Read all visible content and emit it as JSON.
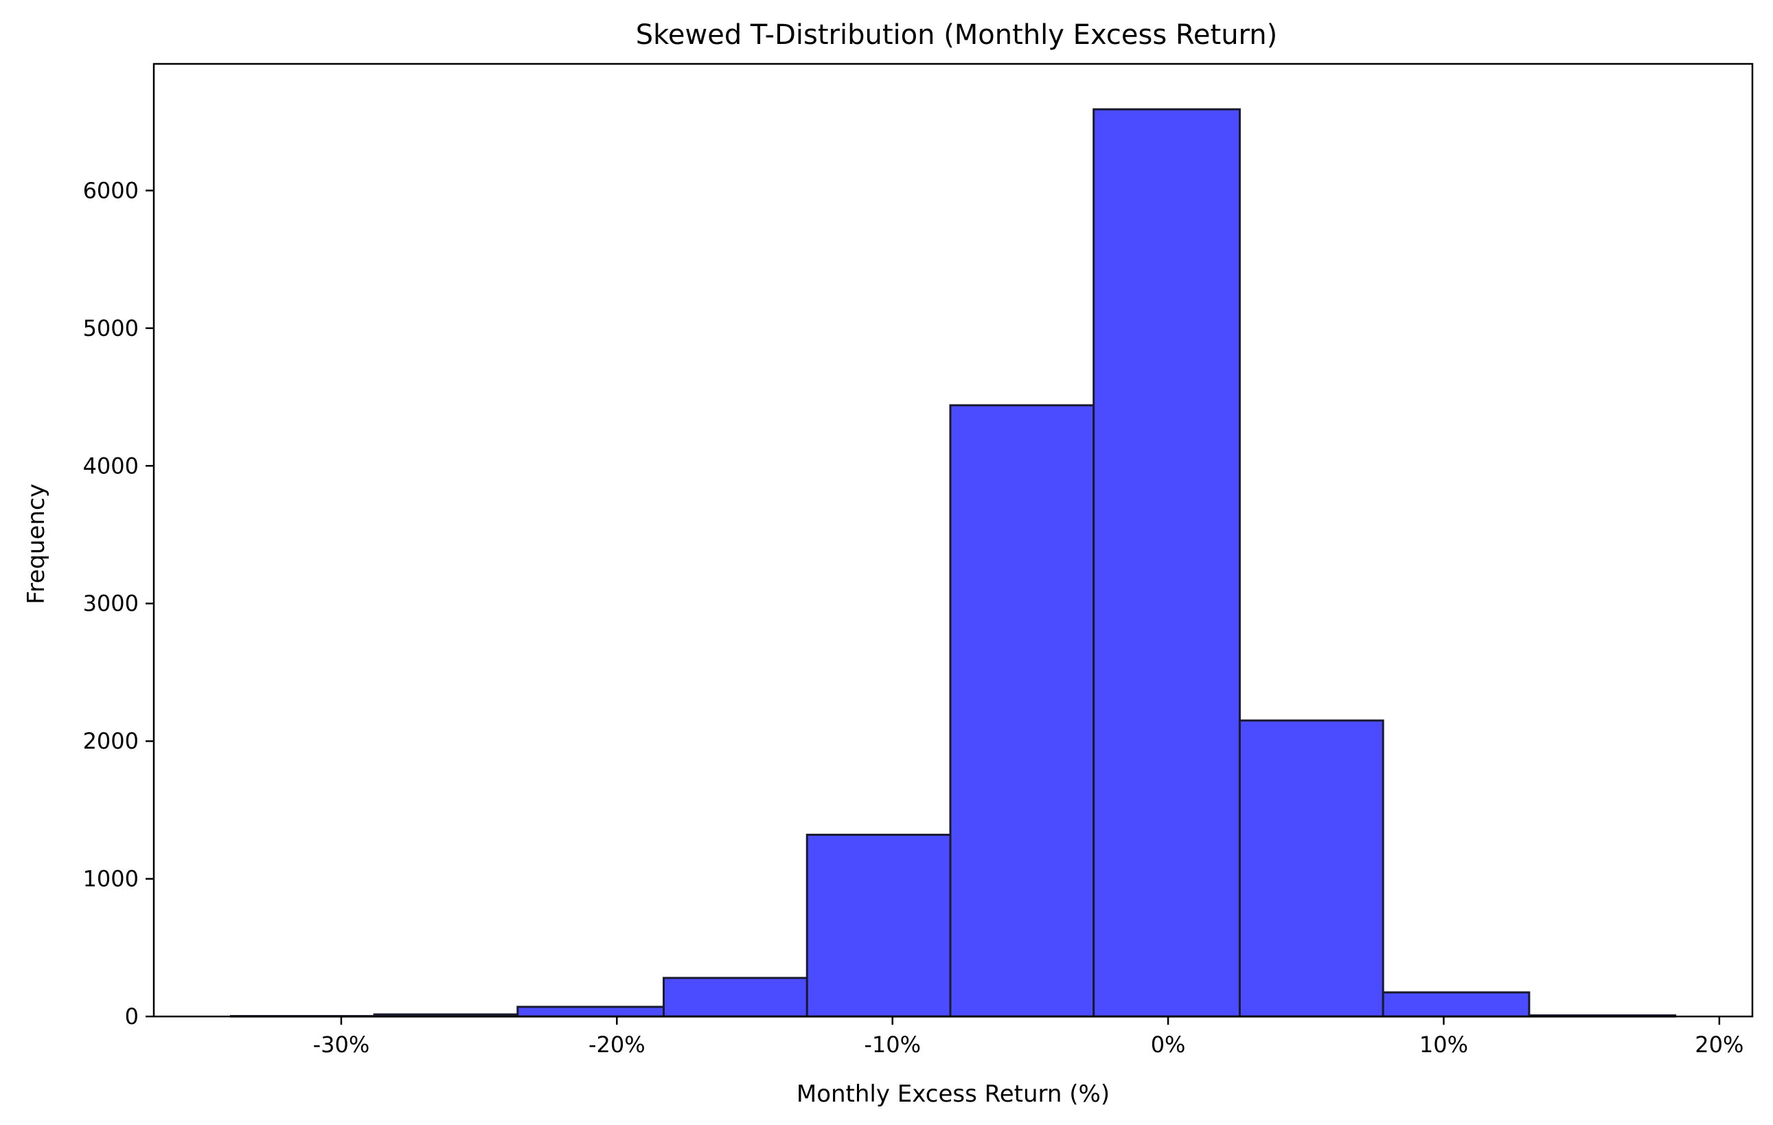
{
  "chart_data": {
    "type": "bar",
    "title": "Skewed T-Distribution (Monthly Excess Return)",
    "xlabel": "Monthly Excess Return (%)",
    "ylabel": "Frequency",
    "bar_color": "#4b4bff",
    "edge_color": "#1a1a2e",
    "bin_edges": [
      -0.34,
      -0.288,
      -0.236,
      -0.183,
      -0.131,
      -0.079,
      -0.027,
      0.026,
      0.078,
      0.131,
      0.184
    ],
    "values": [
      3,
      15,
      70,
      280,
      1320,
      4440,
      6590,
      2150,
      175,
      8
    ],
    "xlim": [
      -0.368,
      0.212
    ],
    "ylim": [
      0,
      6920
    ],
    "x_ticks": [
      {
        "value": -0.3,
        "label": "-30%"
      },
      {
        "value": -0.2,
        "label": "-20%"
      },
      {
        "value": -0.1,
        "label": "-10%"
      },
      {
        "value": 0.0,
        "label": "0%"
      },
      {
        "value": 0.1,
        "label": "10%"
      },
      {
        "value": 0.2,
        "label": "20%"
      }
    ],
    "y_ticks": [
      {
        "value": 0,
        "label": "0"
      },
      {
        "value": 1000,
        "label": "1000"
      },
      {
        "value": 2000,
        "label": "2000"
      },
      {
        "value": 3000,
        "label": "3000"
      },
      {
        "value": 4000,
        "label": "4000"
      },
      {
        "value": 5000,
        "label": "5000"
      },
      {
        "value": 6000,
        "label": "6000"
      }
    ],
    "grid": false,
    "legend": "none"
  }
}
